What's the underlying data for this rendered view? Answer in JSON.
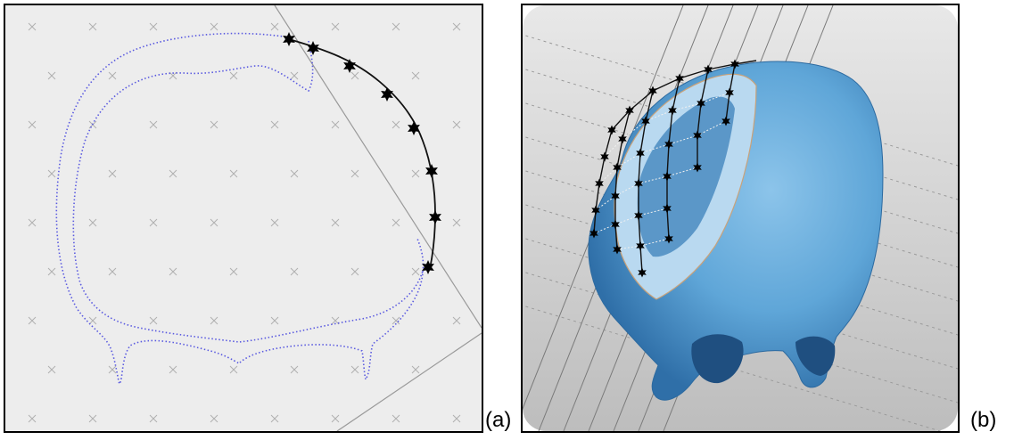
{
  "figure": {
    "panels": [
      {
        "label": "(a)"
      },
      {
        "label": "(b)"
      }
    ]
  },
  "colors": {
    "panel_a_background": "#ededed",
    "grid_marker": "#b0b0b0",
    "outline_dotted": "#5a5ae0",
    "curve_stroke": "#111111",
    "star_marker": "#000000",
    "skull_fill": "#6aaedc",
    "skull_shade": "#3d83bf",
    "panel_b_background": "#d9d9d9",
    "guide_line": "#8a8a8a"
  },
  "icons": {
    "control_point": "star-icon",
    "grid_point": "cross-icon"
  }
}
